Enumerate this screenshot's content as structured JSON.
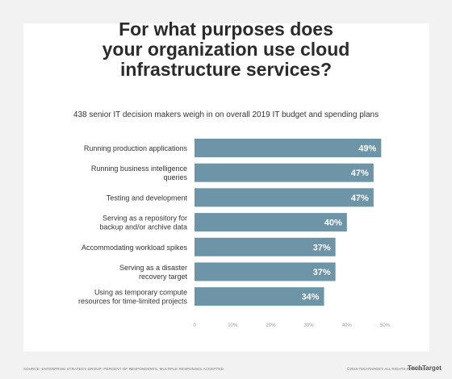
{
  "title_lines": [
    "For what purposes does",
    "your organization use cloud",
    "infrastructure services?"
  ],
  "subtitle": "438 senior IT decision makers weigh in on overall 2019 IT budget and spending plans",
  "source": "SOURCE: ENTERPRISE STRATEGY GROUP; PERCENT OF RESPONDENTS, MULTIPLE RESPONSES ACCEPTED",
  "copyright": "©2019 TECHTARGET. ALL RIGHTS RESERVED",
  "brand": "TechTarget",
  "colors": {
    "bar": "#6e94a8",
    "label_on_bar": "#ffffff",
    "background": "#f2f2f2",
    "card": "#ffffff"
  },
  "chart_data": {
    "type": "bar",
    "orientation": "horizontal",
    "categories": [
      [
        "Running production applications"
      ],
      [
        "Running business intelligence",
        "queries"
      ],
      [
        "Testing and development"
      ],
      [
        "Serving as a repository for",
        "backup and/or archive data"
      ],
      [
        "Accommodating workload spikes"
      ],
      [
        "Serving as a disaster",
        "recovery target"
      ],
      [
        "Using as temporary compute",
        "resources for time-limited projects"
      ]
    ],
    "values": [
      49,
      47,
      47,
      40,
      37,
      37,
      34
    ],
    "value_labels": [
      "49%",
      "47%",
      "47%",
      "40%",
      "37%",
      "37%",
      "34%"
    ],
    "xlim": [
      0,
      50
    ],
    "x_ticks": [
      "0",
      "10%",
      "20%",
      "30%",
      "40%",
      "50%"
    ],
    "grid": false
  }
}
